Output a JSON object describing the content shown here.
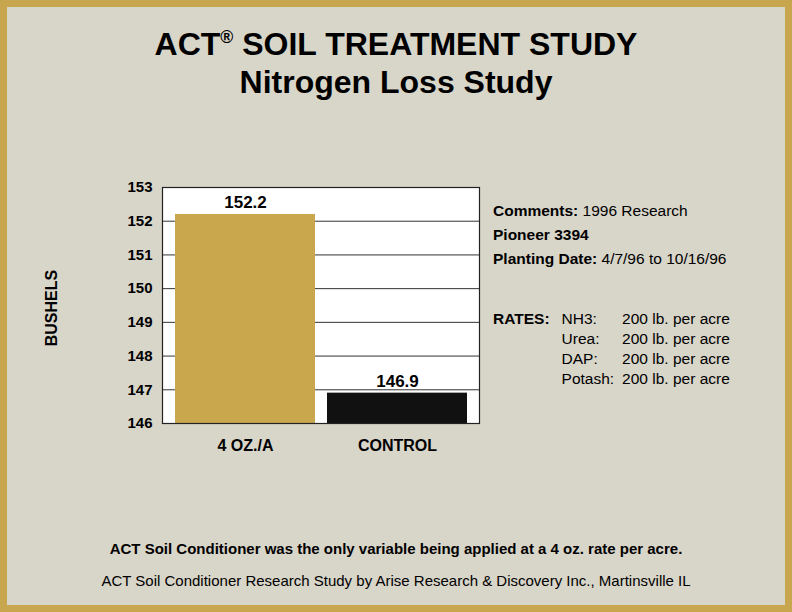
{
  "chart_data": {
    "type": "bar",
    "title": "ACT® SOIL TREATMENT STUDY",
    "subtitle": "Nitrogen Loss Study",
    "y_label": "BUSHELS",
    "categories": [
      "4 OZ./A",
      "CONTROL"
    ],
    "values": [
      152.2,
      146.9
    ],
    "colors": [
      "#c9a74c",
      "#111111"
    ],
    "ylim": [
      146,
      153
    ],
    "yticks": [
      146,
      147,
      148,
      149,
      150,
      151,
      152,
      153
    ],
    "grid": true,
    "data_labels": true,
    "annotations": {
      "details": [
        {
          "label": "Comments:",
          "text": "1996 Research"
        },
        {
          "label": "Pioneer 3394"
        },
        {
          "label": "Planting Date:",
          "text": "4/7/96 to 10/16/96"
        }
      ],
      "rates_label": "RATES:",
      "rates": [
        {
          "name": "NH3:",
          "text": "200 lb. per acre"
        },
        {
          "name": "Urea:",
          "text": "200 lb. per acre"
        },
        {
          "name": "DAP:",
          "text": "200 lb. per acre"
        },
        {
          "name": "Potash:",
          "text": "200 lb. per acre"
        }
      ]
    },
    "footnote": "ACT Soil Conditioner was the only variable being applied at a 4 oz. rate per acre.",
    "source": "ACT Soil Conditioner Research Study by Arise Research & Discovery Inc., Martinsville IL"
  }
}
